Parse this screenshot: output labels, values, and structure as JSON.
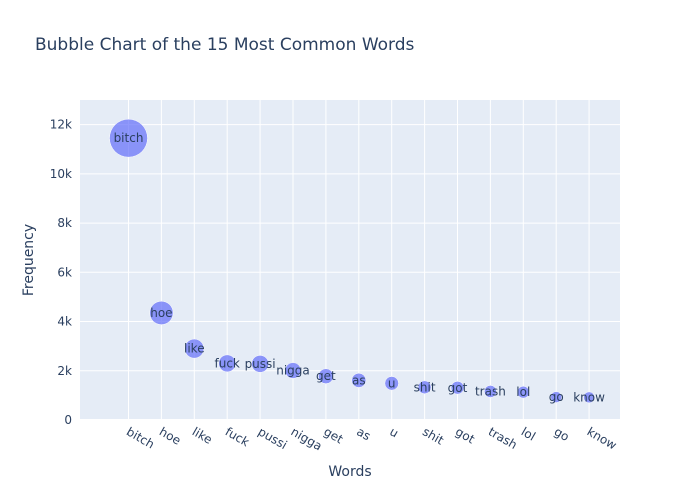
{
  "chart_data": {
    "type": "scatter",
    "title": "Bubble Chart of the 15 Most Common Words",
    "xlabel": "Words",
    "ylabel": "Frequency",
    "ylim": [
      0,
      13000
    ],
    "yticks": [
      0,
      2000,
      4000,
      6000,
      8000,
      10000,
      12000
    ],
    "ytick_labels": [
      "0",
      "2k",
      "4k",
      "6k",
      "8k",
      "10k",
      "12k"
    ],
    "grid": true,
    "marker_color": "#636efa",
    "plot_background": "#e5ecf6",
    "categories": [
      "bitch",
      "hoe",
      "like",
      "fuck",
      "pussi",
      "nigga",
      "get",
      "as",
      "u",
      "shit",
      "got",
      "trash",
      "lol",
      "go",
      "know"
    ],
    "values": [
      11450,
      4350,
      2900,
      2300,
      2280,
      2010,
      1780,
      1610,
      1490,
      1330,
      1310,
      1160,
      1130,
      930,
      920
    ]
  }
}
